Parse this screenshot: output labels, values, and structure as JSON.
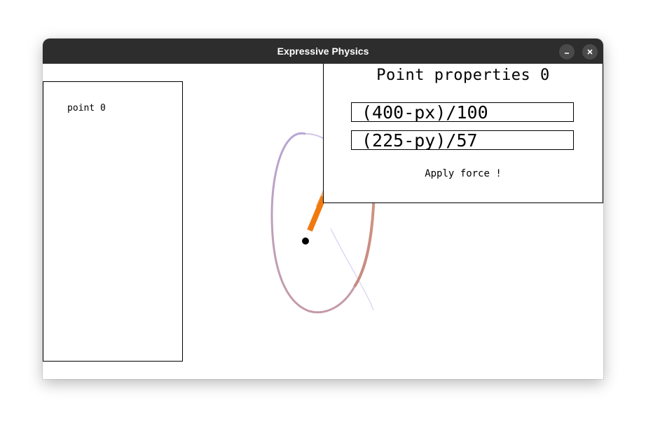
{
  "window": {
    "title": "Expressive Physics",
    "minimize_icon": "minimize-icon",
    "close_icon": "close-icon"
  },
  "point_list": {
    "items": [
      {
        "label": "point 0"
      }
    ]
  },
  "properties": {
    "title": "Point properties 0",
    "force_x_expression": "(400-px)/100",
    "force_y_expression": "(225-py)/57",
    "apply_label": "Apply force !"
  },
  "colors": {
    "titlebar": "#2d2d2d",
    "trail_purple": "#b39bd0",
    "trail_brown": "#c08080",
    "trail_orange": "#f5a05a",
    "head_orange": "#f07a10"
  }
}
